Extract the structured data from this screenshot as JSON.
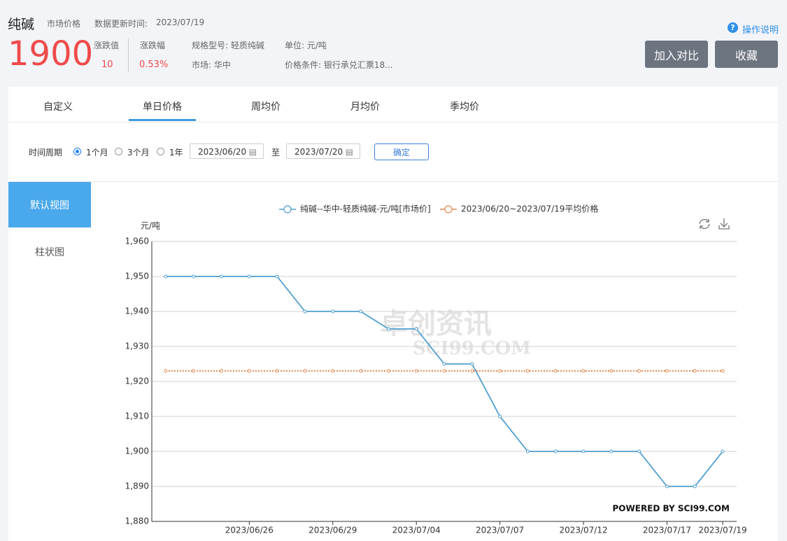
{
  "header": {
    "title": "纯碱",
    "subtitle": "市场价格",
    "update_label": "数据更新时间:",
    "update_date": "2023/07/19",
    "price": "1900",
    "change_label": "涨跌值",
    "change": "10",
    "change_pct_label": "涨跌幅",
    "change_pct": "0.53%",
    "spec": "规格型号: 轻质纯碱",
    "unit": "单位: 元/吨",
    "market": "市场: 华中",
    "condition": "价格条件: 银行承兑汇票18...",
    "help": "操作说明",
    "buttons": [
      "加入对比",
      "收藏"
    ]
  },
  "tabs": [
    "自定义",
    "单日价格",
    "周均价",
    "月均价",
    "季均价"
  ],
  "filter": {
    "label": "时间周期",
    "options": [
      "1个月",
      "3个月",
      "1年"
    ],
    "start": "2023/06/20",
    "to": "至",
    "end": "2023/07/20",
    "confirm": "确定"
  },
  "side": [
    "默认视图",
    "柱状图"
  ],
  "chart_data": {
    "type": "line",
    "ylabel": "元/吨",
    "categories": [
      null,
      null,
      null,
      "2023/06/26",
      null,
      null,
      "2023/06/29",
      null,
      null,
      "2023/07/04",
      null,
      null,
      "2023/07/07",
      null,
      null,
      "2023/07/12",
      null,
      null,
      "2023/07/17",
      null,
      "2023/07/19"
    ],
    "series": [
      {
        "name": "纯碱--华中-轻质纯碱-元/吨[市场价]",
        "color": "#4f9fcf",
        "line_style": "solid",
        "values": [
          1950,
          1950,
          1950,
          1950,
          1950,
          1940,
          1940,
          1940,
          1935,
          1935,
          1925,
          1925,
          1910,
          1900,
          1900,
          1900,
          1900,
          1900,
          1890,
          1890,
          1900
        ]
      },
      {
        "name": "2023/06/20~2023/07/19平均价格",
        "color": "#e08a4f",
        "line_style": "dotted",
        "values": [
          1923,
          1923,
          1923,
          1923,
          1923,
          1923,
          1923,
          1923,
          1923,
          1923,
          1923,
          1923,
          1923,
          1923,
          1923,
          1923,
          1923,
          1923,
          1923,
          1923,
          1923
        ]
      }
    ],
    "ylim": [
      1880,
      1960
    ],
    "yticks": [
      {
        "value": 1880,
        "label": "1,880"
      },
      {
        "value": 1890,
        "label": "1,890"
      },
      {
        "value": 1900,
        "label": "1,900"
      },
      {
        "value": 1910,
        "label": "1,910"
      },
      {
        "value": 1920,
        "label": "1,920"
      },
      {
        "value": 1930,
        "label": "1,930"
      },
      {
        "value": 1940,
        "label": "1,940"
      },
      {
        "value": 1950,
        "label": "1,950"
      },
      {
        "value": 1960,
        "label": "1,960"
      }
    ],
    "grid": true,
    "legend": "top",
    "watermark": "卓创资讯",
    "watermark_sub": "SCI99.COM",
    "credit": "POWERED BY SCI99.COM"
  }
}
